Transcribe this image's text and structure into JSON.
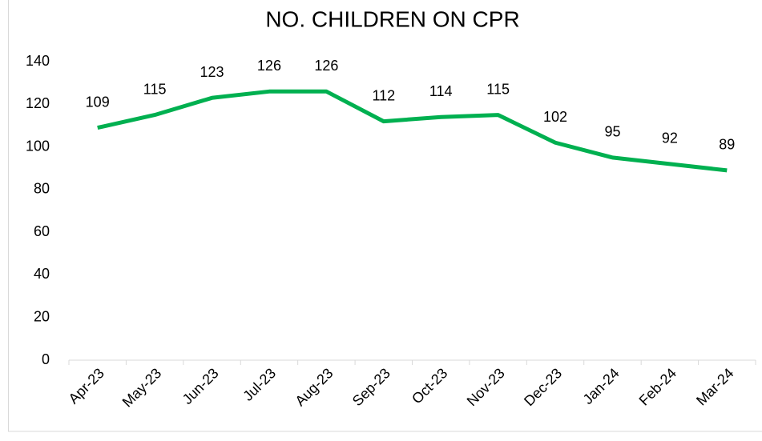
{
  "chart_data": {
    "type": "line",
    "title": "NO. CHILDREN ON CPR",
    "categories": [
      "Apr-23",
      "May-23",
      "Jun-23",
      "Jul-23",
      "Aug-23",
      "Sep-23",
      "Oct-23",
      "Nov-23",
      "Dec-23",
      "Jan-24",
      "Feb-24",
      "Mar-24"
    ],
    "series": [
      {
        "name": "No. children on CPR",
        "color": "#00b050",
        "values": [
          109,
          115,
          123,
          126,
          126,
          112,
          114,
          115,
          102,
          95,
          92,
          89
        ]
      }
    ],
    "ylim": [
      0,
      140
    ],
    "yticks": [
      0,
      20,
      40,
      60,
      80,
      100,
      120,
      140
    ],
    "grid": false,
    "legend": false
  }
}
